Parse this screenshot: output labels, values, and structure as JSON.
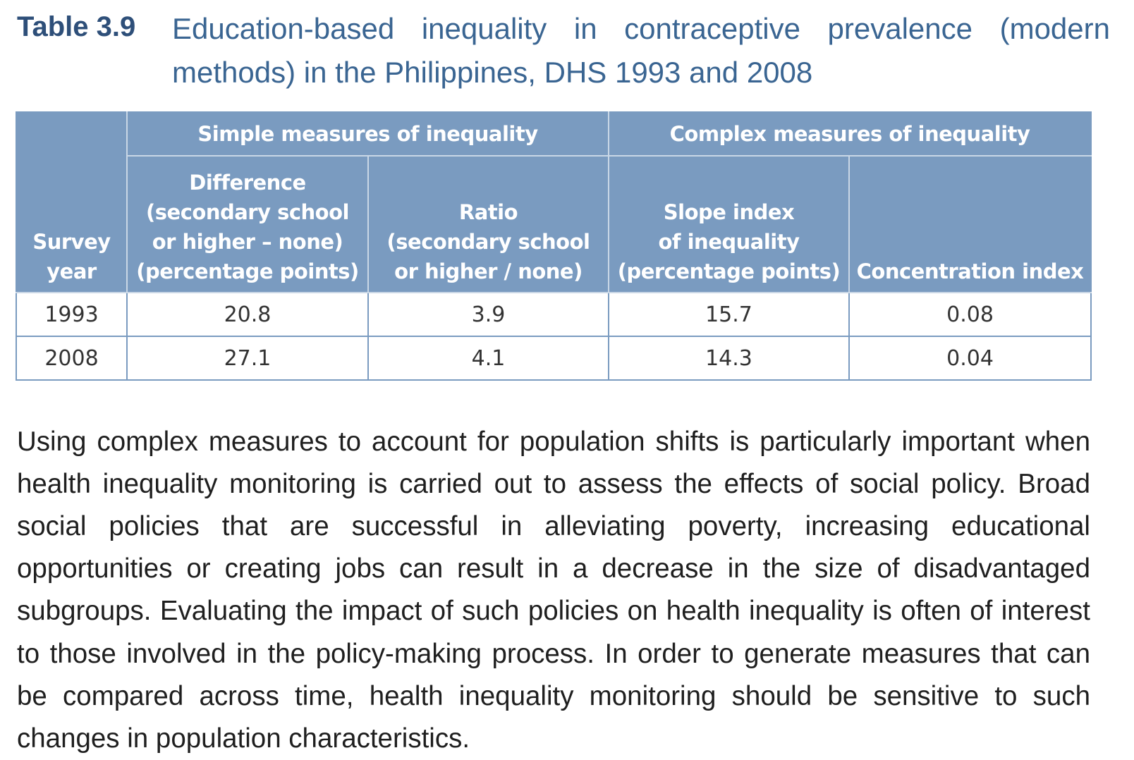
{
  "caption": {
    "label": "Table 3.9",
    "title": "Education-based inequality in contraceptive prevalence (modern methods) in the Philippines, DHS 1993 and 2008"
  },
  "table": {
    "year_header": [
      "Survey",
      "year"
    ],
    "groups": [
      "Simple measures of inequality",
      "Complex measures of inequality"
    ],
    "columns": [
      [
        "Difference",
        "(secondary school",
        "or higher – none)",
        "(percentage points)"
      ],
      [
        "Ratio",
        "(secondary school",
        "or higher / none)"
      ],
      [
        "Slope index",
        "of inequality",
        "(percentage points)"
      ],
      [
        "Concentration index"
      ]
    ],
    "rows": [
      [
        "1993",
        "20.8",
        "3.9",
        "15.7",
        "0.08"
      ],
      [
        "2008",
        "27.1",
        "4.1",
        "14.3",
        "0.04"
      ]
    ]
  },
  "body_text": "Using complex measures to account for population shifts is particularly important when health inequality monitoring is carried out to assess the effects of social policy. Broad social policies that are successful in alleviating poverty, increasing educational opportunities or creating jobs can result in a decrease in the size of disadvantaged subgroups. Evaluating the impact of such policies on health inequality is often of interest to those involved in the policy-making process. In order to generate measures that can be compared across time, health inequality monitoring should be sensitive to such changes in population characteristics.",
  "colors": {
    "caption_label": "#2e4f79",
    "caption_title": "#3a6592",
    "header_fill": "#7a9bc0",
    "cell_text": "#333333",
    "body_text": "#1f1f1f"
  }
}
